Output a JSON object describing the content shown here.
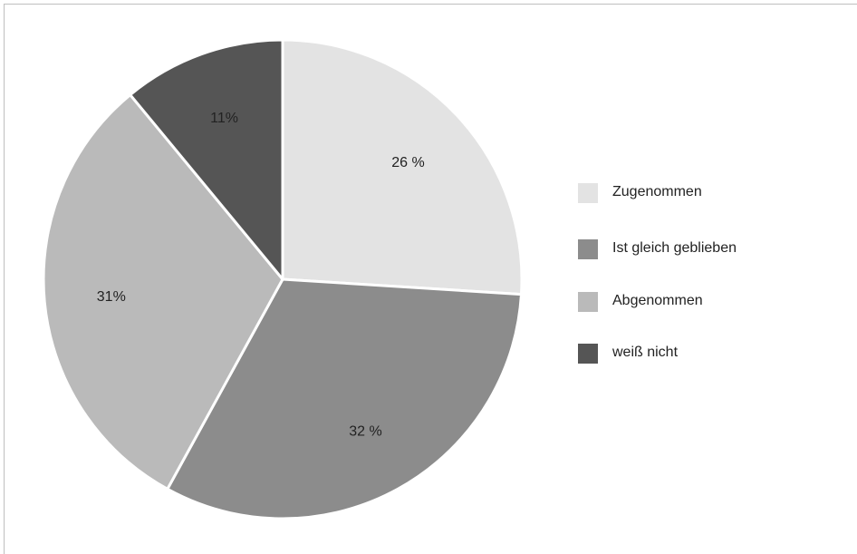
{
  "chart_data": {
    "type": "pie",
    "categories": [
      "Zugenommen",
      "Ist gleich geblieben",
      "Abgenommen",
      "weiß nicht"
    ],
    "values": [
      26,
      32,
      31,
      11
    ],
    "value_labels": [
      "26 %",
      "32 %",
      "31%",
      "11%"
    ],
    "colors": [
      "#e3e3e3",
      "#8c8c8c",
      "#bababa",
      "#555555"
    ],
    "start": "12 o'clock",
    "direction": "clockwise",
    "legend_position": "right"
  }
}
